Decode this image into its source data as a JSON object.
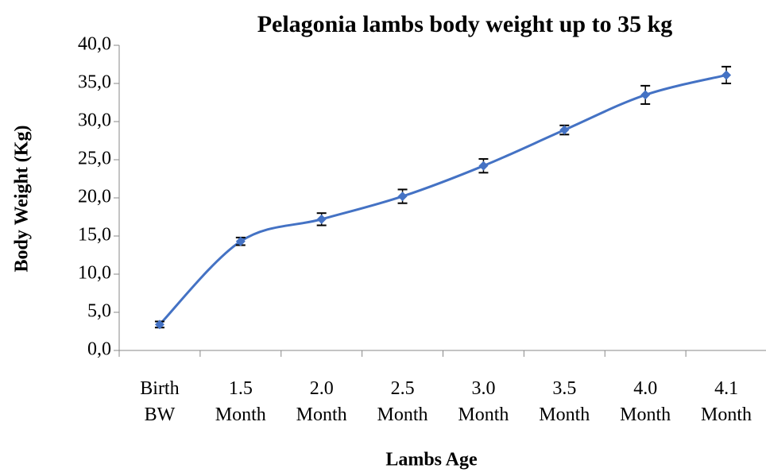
{
  "chart_data": {
    "type": "line",
    "title": "Pelagonia lambs body weight up to 35 kg",
    "x_label": "Lambs Age",
    "y_label": "Body Weight (Kg)",
    "categories": [
      "Birth BW",
      "1.5 Month",
      "2.0 Month",
      "2.5 Month",
      "3.0 Month",
      "3.5 Month",
      "4.0 Month",
      "4.1 Month"
    ],
    "series": [
      {
        "name": "Body Weight",
        "color": "#4472c4",
        "values": [
          3.4,
          14.3,
          17.2,
          20.2,
          24.2,
          28.9,
          33.5,
          36.1
        ],
        "errors": [
          0.4,
          0.5,
          0.8,
          0.9,
          0.9,
          0.6,
          1.2,
          1.1
        ]
      }
    ],
    "ylim": [
      0,
      40
    ],
    "yticks": [
      {
        "value": 0,
        "label": "0,0"
      },
      {
        "value": 5,
        "label": "5,0"
      },
      {
        "value": 10,
        "label": "10,0"
      },
      {
        "value": 15,
        "label": "15,0"
      },
      {
        "value": 20,
        "label": "20,0"
      },
      {
        "value": 25,
        "label": "25,0"
      },
      {
        "value": 30,
        "label": "30,0"
      },
      {
        "value": 35,
        "label": "35,0"
      },
      {
        "value": 40,
        "label": "40,0"
      }
    ],
    "smooth": true,
    "grid": false
  }
}
